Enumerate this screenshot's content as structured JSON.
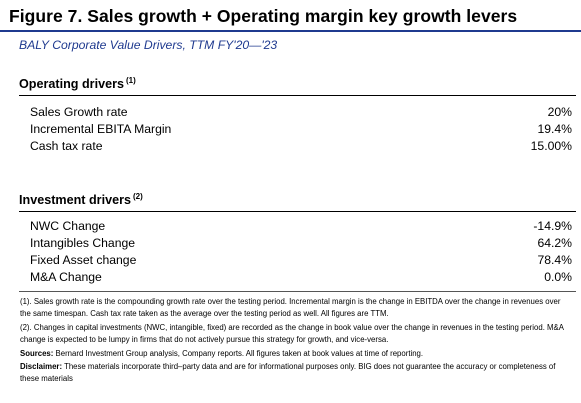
{
  "title": "Figure 7. Sales growth + Operating margin key growth levers",
  "subtitle": "BALY Corporate Value Drivers, TTM FY'20—'23",
  "operating": {
    "heading": "Operating drivers",
    "note_ref": "(1)",
    "rows": [
      {
        "label": "Sales Growth rate",
        "value": "20%"
      },
      {
        "label": "Incremental EBITA Margin",
        "value": "19.4%"
      },
      {
        "label": "Cash tax rate",
        "value": "15.00%"
      }
    ]
  },
  "investment": {
    "heading": "Investment drivers",
    "note_ref": "(2)",
    "rows": [
      {
        "label": "NWC Change",
        "value": "-14.9%"
      },
      {
        "label": "Intangibles Change",
        "value": "64.2%"
      },
      {
        "label": "Fixed Asset change",
        "value": "78.4%"
      },
      {
        "label": "M&A Change",
        "value": "0.0%"
      }
    ]
  },
  "footnotes": {
    "note1": "(1). Sales growth rate is the compounding growth rate over the testing period. Incremental margin is the change in EBITDA over the change in revenues over the same timespan. Cash tax rate taken as the average over the testing period as well. All figures are TTM.",
    "note2": "(2). Changes in capital investments (NWC, intangible, fixed) are recorded as the change in book value over the change in revenues in the testing period. M&A change is expected to be lumpy in firms that do not actively pursue this strategy for growth, and vice-versa.",
    "sources_label": "Sources:",
    "sources_text": "Bernard Investment Group analysis, Company reports. All figures taken at book values at time of reporting.",
    "disclaimer_label": "Disclaimer:",
    "disclaimer_text": "These materials incorporate third–party data and are for informational purposes only. BIG does not guarantee the accuracy or completeness of these materials"
  }
}
